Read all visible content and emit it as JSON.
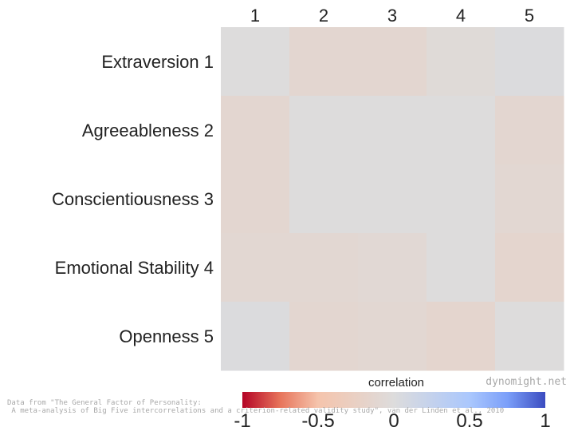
{
  "chart_data": {
    "type": "heatmap",
    "title": "",
    "row_labels": [
      "Extraversion",
      "Agreeableness",
      "Conscientiousness",
      "Emotional Stability",
      "Openness"
    ],
    "row_numbers": [
      "1",
      "2",
      "3",
      "4",
      "5"
    ],
    "col_labels": [
      "1",
      "2",
      "3",
      "4",
      "5"
    ],
    "values": [
      [
        0.0,
        -0.12,
        -0.12,
        -0.05,
        0.02
      ],
      [
        -0.12,
        0.0,
        0.0,
        0.0,
        -0.12
      ],
      [
        -0.12,
        0.0,
        0.0,
        0.0,
        -0.1
      ],
      [
        -0.1,
        -0.1,
        -0.08,
        0.0,
        -0.15
      ],
      [
        0.02,
        -0.12,
        -0.1,
        -0.15,
        0.0
      ]
    ],
    "colorbar": {
      "label": "correlation",
      "range": [
        -1,
        1
      ],
      "ticks": [
        -1,
        -0.5,
        0,
        0.5,
        1
      ],
      "tick_labels": [
        "-1",
        "-0.5",
        "0",
        "0.5",
        "1"
      ],
      "colormap": "coolwarm_r",
      "colors": {
        "low": "#b40426",
        "mid": "#dddcdc",
        "high": "#3b4cc0"
      }
    }
  },
  "watermark": "dynomight.net",
  "source_note": {
    "line1": "Data from \"The General Factor of Personality:",
    "line2": " A meta-analysis of Big Five intercorrelations and a criterion-related validity study\", van der Linden et al., 2010"
  }
}
